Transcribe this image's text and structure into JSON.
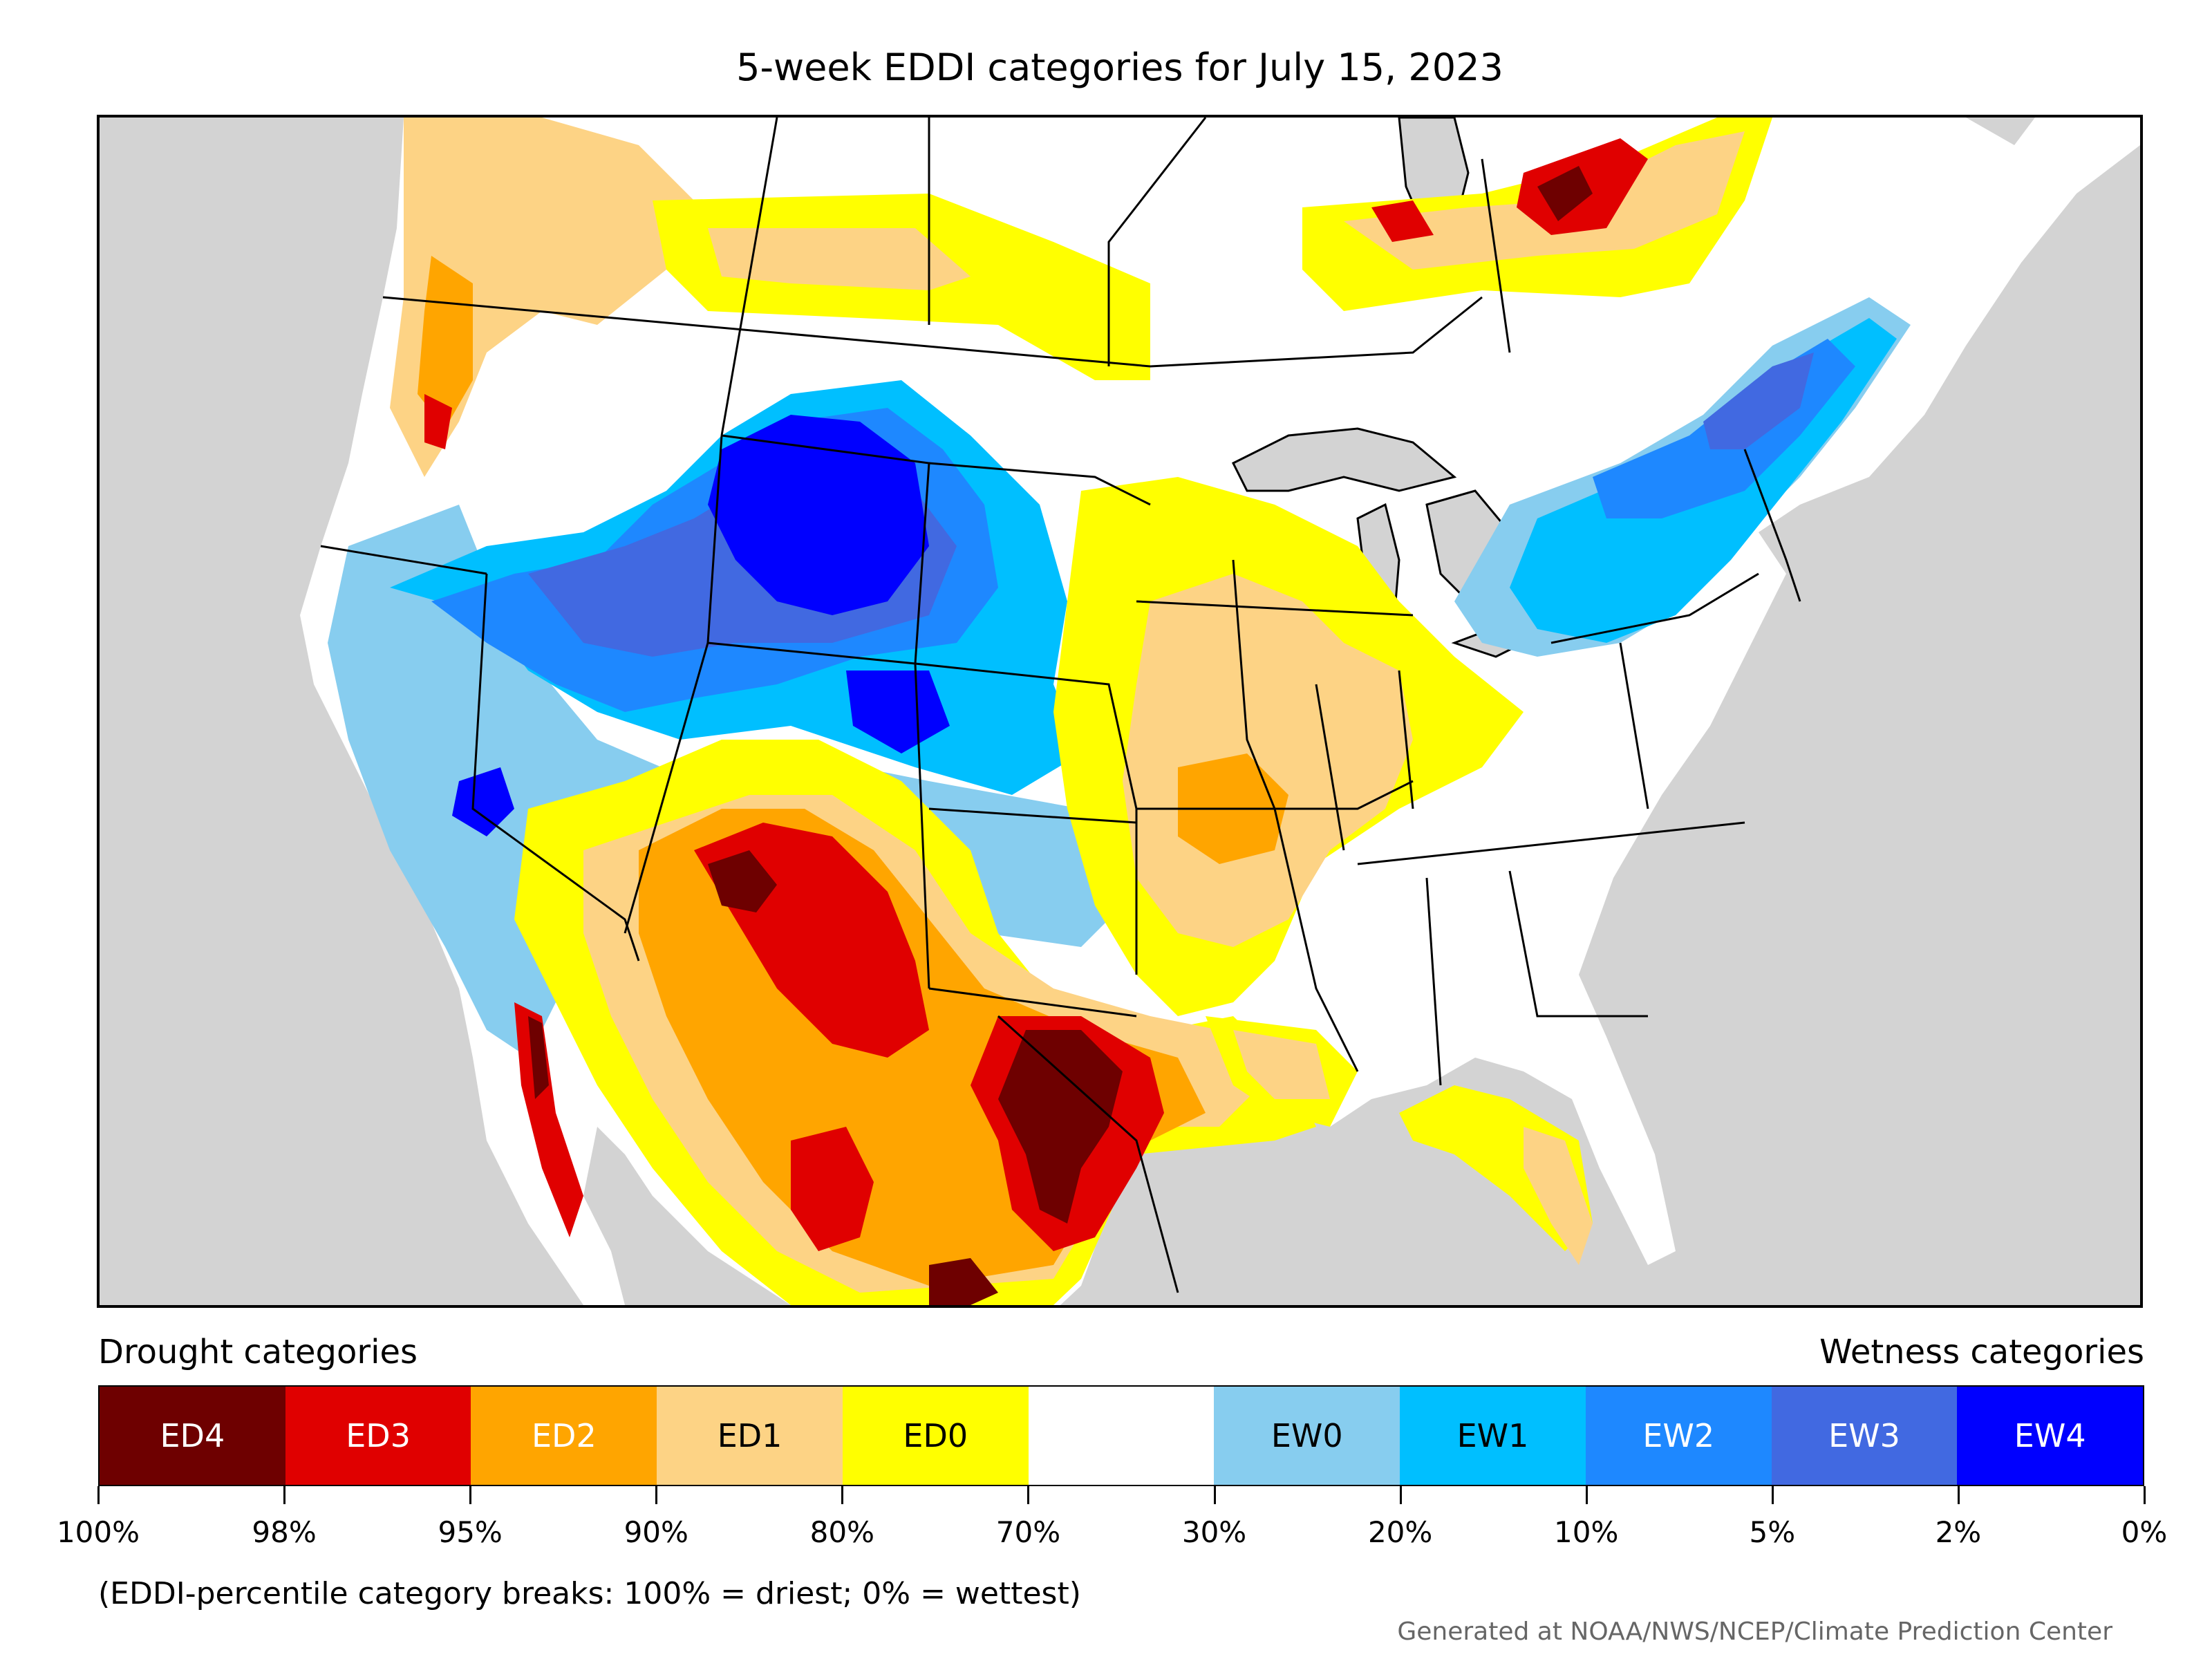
{
  "title": "5-week EDDI categories for July 15, 2023",
  "map": {
    "region": "Contiguous United States",
    "water_color": "#d3d3d3",
    "land_color": "#ffffff",
    "boundary_color": "#000000",
    "regions": [
      {
        "category": "EW4",
        "area": "Wyoming"
      },
      {
        "category": "EW2",
        "area": "Montana, Idaho, Utah, Nevada"
      },
      {
        "category": "EW1",
        "area": "New England and the Northeast"
      },
      {
        "category": "ED4",
        "area": "Southeast Texas"
      },
      {
        "category": "ED3",
        "area": "New Mexico and western Texas"
      },
      {
        "category": "ED2",
        "area": "Texas and Arizona"
      },
      {
        "category": "ED1",
        "area": "Missouri and Illinois"
      },
      {
        "category": "ED0",
        "area": "Midwest fringe"
      }
    ]
  },
  "legend": {
    "drought_heading": "Drought categories",
    "wetness_heading": "Wetness categories",
    "categories": [
      {
        "label": "ED4",
        "color": "#6e0000",
        "text_color": "#ffffff"
      },
      {
        "label": "ED3",
        "color": "#e00000",
        "text_color": "#ffffff"
      },
      {
        "label": "ED2",
        "color": "#ffa500",
        "text_color": "#ffffff"
      },
      {
        "label": "ED1",
        "color": "#fdd385",
        "text_color": "#000000"
      },
      {
        "label": "ED0",
        "color": "#ffff00",
        "text_color": "#000000"
      },
      {
        "label": "",
        "color": "#ffffff",
        "text_color": "#000000"
      },
      {
        "label": "EW0",
        "color": "#87cdef",
        "text_color": "#000000"
      },
      {
        "label": "EW1",
        "color": "#00bfff",
        "text_color": "#000000"
      },
      {
        "label": "EW2",
        "color": "#1e88ff",
        "text_color": "#ffffff"
      },
      {
        "label": "EW3",
        "color": "#4169e1",
        "text_color": "#ffffff"
      },
      {
        "label": "EW4",
        "color": "#0000ff",
        "text_color": "#ffffff"
      }
    ],
    "breaks": [
      "100%",
      "98%",
      "95%",
      "90%",
      "80%",
      "70%",
      "30%",
      "20%",
      "10%",
      "5%",
      "2%",
      "0%"
    ],
    "note": "(EDDI-percentile category breaks: 100% = driest; 0% = wettest)"
  },
  "credit": "Generated at NOAA/NWS/NCEP/Climate Prediction Center"
}
